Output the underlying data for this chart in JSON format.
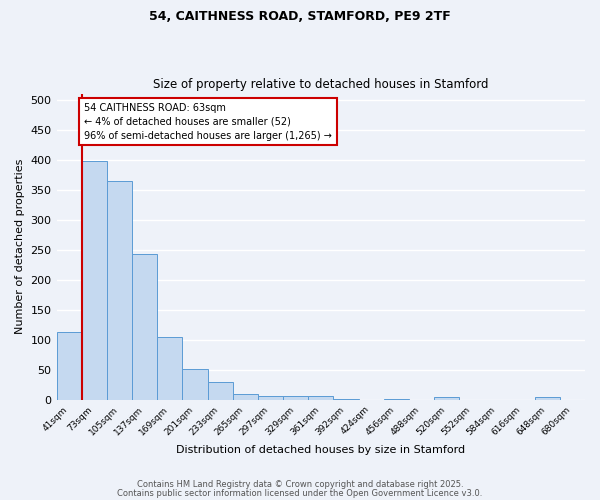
{
  "title_line1": "54, CAITHNESS ROAD, STAMFORD, PE9 2TF",
  "title_line2": "Size of property relative to detached houses in Stamford",
  "xlabel": "Distribution of detached houses by size in Stamford",
  "ylabel": "Number of detached properties",
  "bar_labels": [
    "41sqm",
    "73sqm",
    "105sqm",
    "137sqm",
    "169sqm",
    "201sqm",
    "233sqm",
    "265sqm",
    "297sqm",
    "329sqm",
    "361sqm",
    "392sqm",
    "424sqm",
    "456sqm",
    "488sqm",
    "520sqm",
    "552sqm",
    "584sqm",
    "616sqm",
    "648sqm",
    "680sqm"
  ],
  "bar_values": [
    113,
    397,
    365,
    243,
    104,
    51,
    30,
    10,
    6,
    6,
    7,
    1,
    0,
    1,
    0,
    5,
    0,
    0,
    0,
    4,
    0
  ],
  "bar_color": "#c5d9f0",
  "bar_edge_color": "#5b9bd5",
  "annotation_text": "54 CAITHNESS ROAD: 63sqm\n← 4% of detached houses are smaller (52)\n96% of semi-detached houses are larger (1,265) →",
  "annotation_box_color": "#ffffff",
  "annotation_box_edge": "#cc0000",
  "red_line_color": "#cc0000",
  "ylim": [
    0,
    510
  ],
  "yticks": [
    0,
    50,
    100,
    150,
    200,
    250,
    300,
    350,
    400,
    450,
    500
  ],
  "background_color": "#eef2f9",
  "grid_color": "#ffffff",
  "footer_line1": "Contains HM Land Registry data © Crown copyright and database right 2025.",
  "footer_line2": "Contains public sector information licensed under the Open Government Licence v3.0."
}
